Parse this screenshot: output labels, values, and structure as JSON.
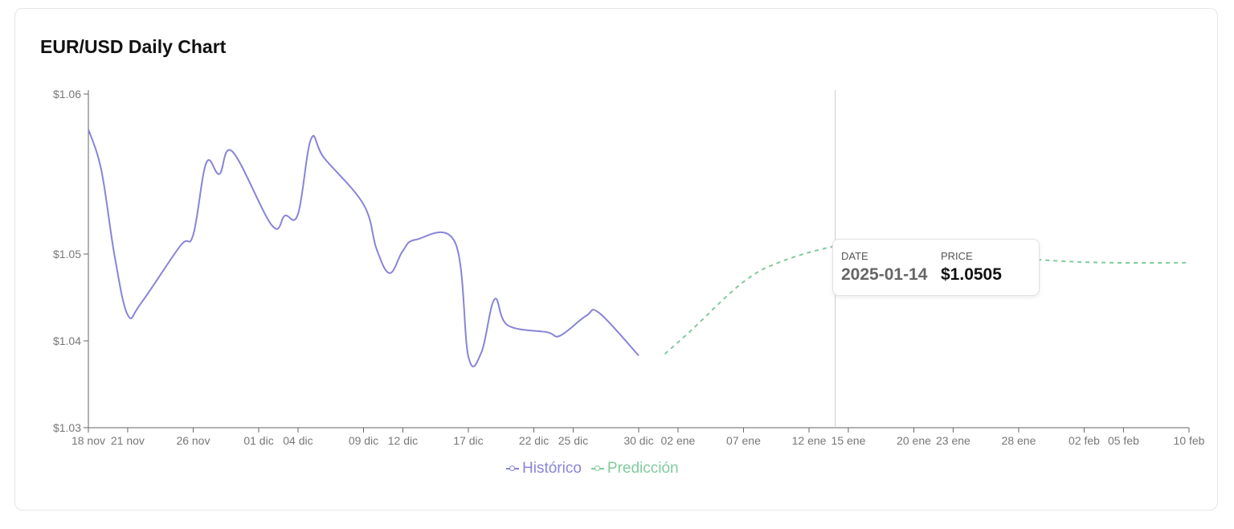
{
  "title": "EUR/USD Daily Chart",
  "colors": {
    "historical": "#8884d8",
    "prediction": "#82ca9d",
    "axis": "#666666",
    "cursor": "#cccccc"
  },
  "legend": {
    "historical": "Histórico",
    "prediction": "Predicción"
  },
  "tooltip": {
    "date_label": "DATE",
    "price_label": "PRICE",
    "date_value": "2025-01-14",
    "price_value": "$1.0505"
  },
  "chart_data": {
    "type": "line",
    "title": "EUR/USD Daily Chart",
    "xlabel": "",
    "ylabel": "",
    "ylim": [
      1.03,
      1.06
    ],
    "y_ticks": [
      {
        "value": 1.03,
        "label": "$1.03"
      },
      {
        "value": 1.04,
        "label": "$1.04"
      },
      {
        "value": 1.05,
        "label": "$1.05"
      },
      {
        "value": 1.06,
        "label": "$1.06"
      }
    ],
    "x_ticks": [
      {
        "date": "2024-11-18",
        "label": "18 nov"
      },
      {
        "date": "2024-11-21",
        "label": "21 nov"
      },
      {
        "date": "2024-11-26",
        "label": "26 nov"
      },
      {
        "date": "2024-12-01",
        "label": "01 dic"
      },
      {
        "date": "2024-12-04",
        "label": "04 dic"
      },
      {
        "date": "2024-12-09",
        "label": "09 dic"
      },
      {
        "date": "2024-12-12",
        "label": "12 dic"
      },
      {
        "date": "2024-12-17",
        "label": "17 dic"
      },
      {
        "date": "2024-12-22",
        "label": "22 dic"
      },
      {
        "date": "2024-12-25",
        "label": "25 dic"
      },
      {
        "date": "2024-12-30",
        "label": "30 dic"
      },
      {
        "date": "2025-01-02",
        "label": "02 ene"
      },
      {
        "date": "2025-01-07",
        "label": "07 ene"
      },
      {
        "date": "2025-01-12",
        "label": "12 ene"
      },
      {
        "date": "2025-01-15",
        "label": "15 ene"
      },
      {
        "date": "2025-01-20",
        "label": "20 ene"
      },
      {
        "date": "2025-01-23",
        "label": "23 ene"
      },
      {
        "date": "2025-01-28",
        "label": "28 ene"
      },
      {
        "date": "2025-02-02",
        "label": "02 feb"
      },
      {
        "date": "2025-02-05",
        "label": "05 feb"
      },
      {
        "date": "2025-02-10",
        "label": "10 feb"
      }
    ],
    "grid": false,
    "legend_position": "bottom-center",
    "cursor_date": "2025-01-14",
    "series": [
      {
        "name": "Histórico",
        "style": "solid",
        "points": [
          {
            "x": "2024-11-18",
            "y": 1.0578
          },
          {
            "x": "2024-11-19",
            "y": 1.0552
          },
          {
            "x": "2024-11-20",
            "y": 1.0498
          },
          {
            "x": "2024-11-21",
            "y": 1.043
          },
          {
            "x": "2024-11-22",
            "y": 1.0443
          },
          {
            "x": "2024-11-25",
            "y": 1.0505
          },
          {
            "x": "2024-11-26",
            "y": 1.0512
          },
          {
            "x": "2024-11-27",
            "y": 1.0557
          },
          {
            "x": "2024-11-28",
            "y": 1.055
          },
          {
            "x": "2024-11-29",
            "y": 1.0564
          },
          {
            "x": "2024-12-02",
            "y": 1.0518
          },
          {
            "x": "2024-12-03",
            "y": 1.0524
          },
          {
            "x": "2024-12-04",
            "y": 1.0525
          },
          {
            "x": "2024-12-05",
            "y": 1.0572
          },
          {
            "x": "2024-12-06",
            "y": 1.056
          },
          {
            "x": "2024-12-09",
            "y": 1.0531
          },
          {
            "x": "2024-12-10",
            "y": 1.0503
          },
          {
            "x": "2024-12-11",
            "y": 1.0478
          },
          {
            "x": "2024-12-12",
            "y": 1.0502
          },
          {
            "x": "2024-12-13",
            "y": 1.0509
          },
          {
            "x": "2024-12-16",
            "y": 1.0507
          },
          {
            "x": "2024-12-17",
            "y": 1.0382
          },
          {
            "x": "2024-12-18",
            "y": 1.0387
          },
          {
            "x": "2024-12-19",
            "y": 1.0448
          },
          {
            "x": "2024-12-20",
            "y": 1.0418
          },
          {
            "x": "2024-12-23",
            "y": 1.041
          },
          {
            "x": "2024-12-24",
            "y": 1.0406
          },
          {
            "x": "2024-12-26",
            "y": 1.0429
          },
          {
            "x": "2024-12-27",
            "y": 1.0432
          },
          {
            "x": "2024-12-30",
            "y": 1.0383
          }
        ]
      },
      {
        "name": "Predicción",
        "style": "dashed",
        "points": [
          {
            "x": "2025-01-01",
            "y": 1.0385
          },
          {
            "x": "2025-01-03",
            "y": 1.0412
          },
          {
            "x": "2025-01-07",
            "y": 1.0468
          },
          {
            "x": "2025-01-10",
            "y": 1.0492
          },
          {
            "x": "2025-01-14",
            "y": 1.0505
          },
          {
            "x": "2025-01-17",
            "y": 1.0508
          },
          {
            "x": "2025-01-21",
            "y": 1.0506
          },
          {
            "x": "2025-01-25",
            "y": 1.05
          },
          {
            "x": "2025-01-30",
            "y": 1.0493
          },
          {
            "x": "2025-02-04",
            "y": 1.049
          },
          {
            "x": "2025-02-10",
            "y": 1.049
          }
        ]
      }
    ]
  }
}
